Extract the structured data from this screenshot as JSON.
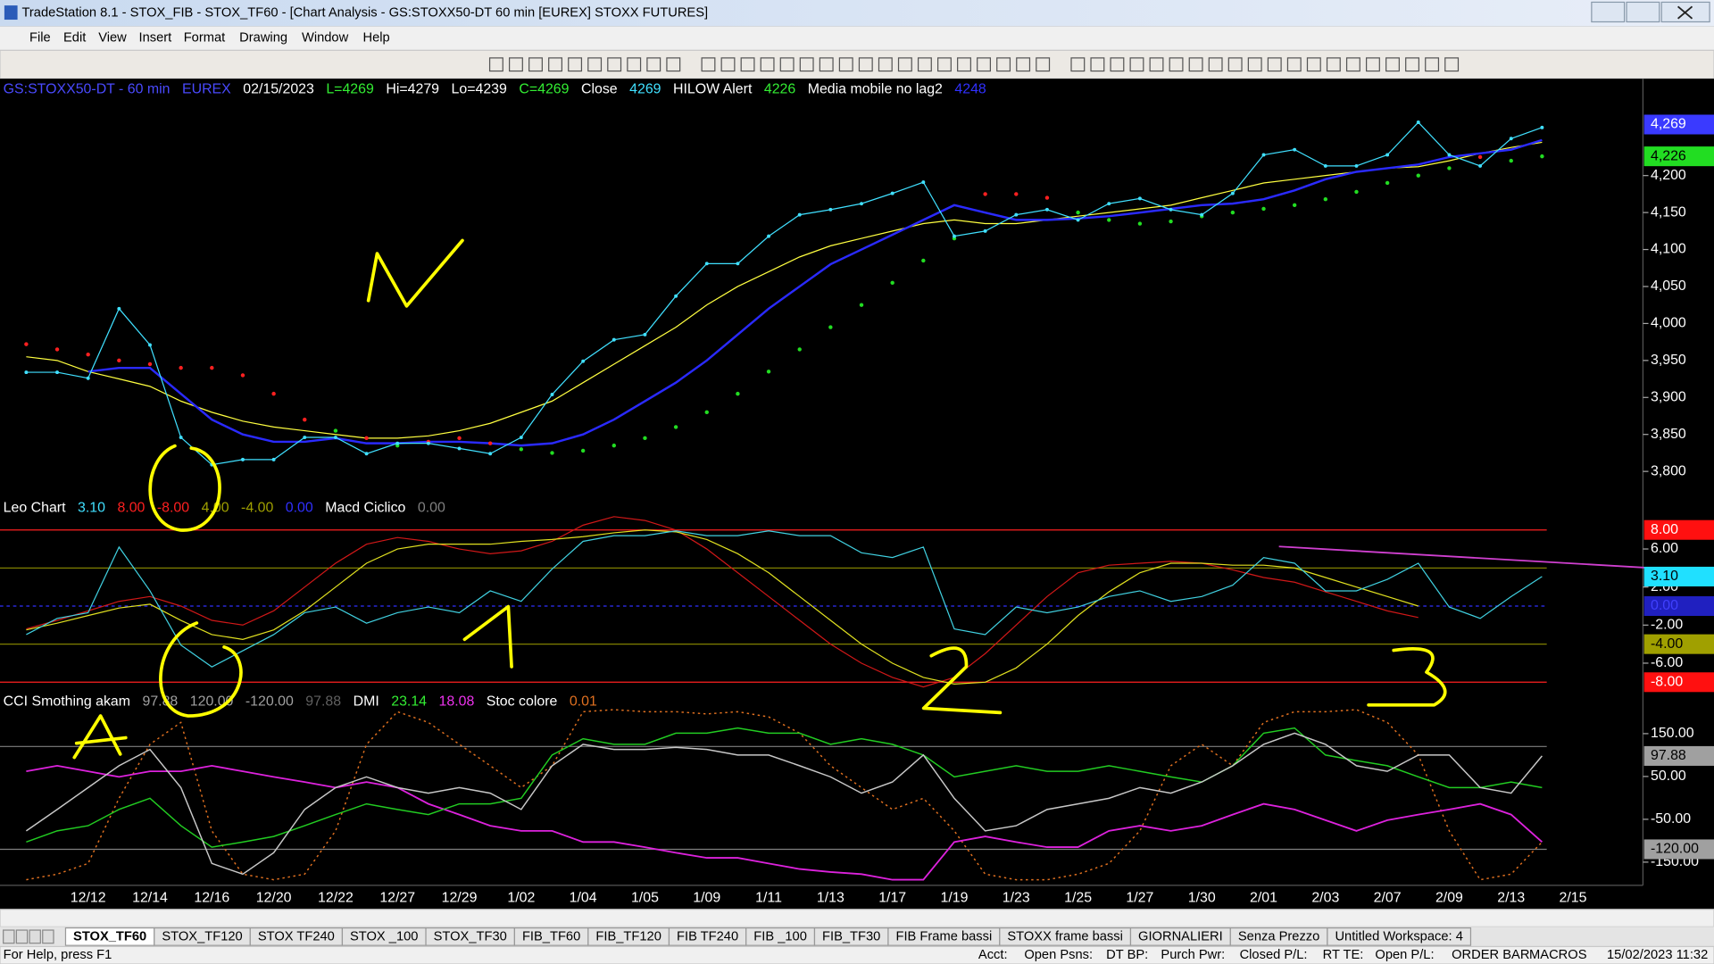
{
  "window": {
    "title": "TradeStation 8.1 - STOX_FIB - STOX_TF60 - [Chart Analysis - GS:STOXX50-DT  60 min  [EUREX] STOXX FUTURES]"
  },
  "menu": [
    "File",
    "Edit",
    "View",
    "Insert",
    "Format",
    "Drawing",
    "Window",
    "Help"
  ],
  "chart_data": [
    {
      "type": "line",
      "header": [
        {
          "text": "GS:STOXX50-DT - 60 min",
          "color": "#4a4aff"
        },
        {
          "text": "EUREX",
          "color": "#4a4aff"
        },
        {
          "text": "02/15/2023",
          "color": "#ffffff"
        },
        {
          "text": "L=4269",
          "color": "#33ee33"
        },
        {
          "text": "Hi=4279",
          "color": "#ffffff"
        },
        {
          "text": "Lo=4239",
          "color": "#ffffff"
        },
        {
          "text": "C=4269",
          "color": "#33ee33"
        },
        {
          "text": "Close",
          "color": "#ffffff"
        },
        {
          "text": "4269",
          "color": "#40e0ff"
        },
        {
          "text": "HILOW Alert",
          "color": "#ffffff"
        },
        {
          "text": "4226",
          "color": "#33ee33"
        },
        {
          "text": "Media mobile no lag2",
          "color": "#ffffff"
        },
        {
          "text": "4248",
          "color": "#3030ff"
        }
      ],
      "categories": [
        null,
        null,
        "12/12",
        null,
        "12/14",
        null,
        "12/16",
        null,
        "12/20",
        null,
        "12/22",
        null,
        "12/27",
        null,
        "12/29",
        null,
        "1/02",
        null,
        "1/04",
        null,
        "1/05",
        null,
        "1/09",
        null,
        "1/11",
        null,
        "1/13",
        null,
        "1/17",
        null,
        "1/19",
        null,
        "1/23",
        null,
        "1/25",
        null,
        "1/27",
        null,
        "1/30",
        null,
        "2/01",
        null,
        "2/03",
        null,
        "2/07",
        null,
        "2/09",
        null,
        "2/13",
        null,
        "2/15"
      ],
      "ylim": [
        3765,
        4328
      ],
      "yticks": [
        {
          "value": 3800,
          "label": "3,800"
        },
        {
          "value": 3850,
          "label": "3,850"
        },
        {
          "value": 3900,
          "label": "3,900"
        },
        {
          "value": 3950,
          "label": "3,950"
        },
        {
          "value": 4000,
          "label": "4,000"
        },
        {
          "value": 4050,
          "label": "4,050"
        },
        {
          "value": 4100,
          "label": "4,100"
        },
        {
          "value": 4150,
          "label": "4,150"
        },
        {
          "value": 4200,
          "label": "4,200"
        }
      ],
      "tags": [
        {
          "value": 4269,
          "label": "4,269",
          "color": "#3a3aff",
          "text_color": "#ffffff"
        },
        {
          "value": 4226,
          "label": "4,226",
          "color": "#22dd22",
          "text_color": "#000000"
        }
      ],
      "series": [
        {
          "color": "#ffff40",
          "width": 1,
          "values": [
            3955,
            3950,
            3935,
            3925,
            3915,
            3895,
            3880,
            3868,
            3860,
            3855,
            3850,
            3845,
            3845,
            3848,
            3855,
            3865,
            3880,
            3895,
            3920,
            3945,
            3970,
            3995,
            4025,
            4050,
            4070,
            4090,
            4105,
            4115,
            4125,
            4135,
            4140,
            4135,
            4135,
            4140,
            4145,
            4150,
            4155,
            4160,
            4170,
            4180,
            4190,
            4195,
            4200,
            4205,
            4210,
            4212,
            4220,
            4230,
            4238,
            4245,
            null
          ]
        },
        {
          "color": "#2a2aff",
          "width": 2,
          "values": [
            null,
            null,
            3935,
            3940,
            3940,
            3905,
            3870,
            3850,
            3840,
            3840,
            3845,
            3838,
            3838,
            3840,
            3840,
            3838,
            3835,
            3838,
            3850,
            3870,
            3895,
            3920,
            3950,
            3985,
            4020,
            4050,
            4080,
            4100,
            4120,
            4140,
            4160,
            4150,
            4140,
            4140,
            4142,
            4145,
            4150,
            4155,
            4160,
            4162,
            4168,
            4180,
            4195,
            4205,
            4210,
            4215,
            4225,
            4230,
            4235,
            4248,
            null
          ]
        },
        {
          "color": "#22dd22",
          "dots_only": true,
          "values": [
            3972,
            3965,
            3958,
            3950,
            3945,
            3940,
            3940,
            3930,
            3905,
            3870,
            3855,
            3845,
            3835,
            3840,
            3845,
            3838,
            3830,
            3825,
            3828,
            3835,
            3845,
            3860,
            3880,
            3905,
            3935,
            3965,
            3995,
            4025,
            4055,
            4085,
            4115,
            4175,
            4175,
            4170,
            4150,
            4140,
            4135,
            4138,
            4145,
            4150,
            4155,
            4160,
            4168,
            4178,
            4190,
            4200,
            4210,
            4225,
            4220,
            4226,
            null
          ],
          "colors": [
            "#ff2020",
            "#ff2020",
            "#ff2020",
            "#ff2020",
            "#ff2020",
            "#ff2020",
            "#ff2020",
            "#ff2020",
            "#ff2020",
            "#ff2020",
            "#22dd22",
            "#ff2020",
            "#22dd22",
            "#ff2020",
            "#ff2020",
            "#ff2020",
            "#22dd22",
            "#22dd22",
            "#22dd22",
            "#22dd22",
            "#22dd22",
            "#22dd22",
            "#22dd22",
            "#22dd22",
            "#22dd22",
            "#22dd22",
            "#22dd22",
            "#22dd22",
            "#22dd22",
            "#22dd22",
            "#22dd22",
            "#ff2020",
            "#ff2020",
            "#ff2020",
            "#22dd22",
            "#22dd22",
            "#22dd22",
            "#22dd22",
            "#22dd22",
            "#22dd22",
            "#22dd22",
            "#22dd22",
            "#22dd22",
            "#22dd22",
            "#22dd22",
            "#22dd22",
            "#22dd22",
            "#ff2020",
            "#22dd22",
            "#22dd22",
            "#22dd22"
          ]
        },
        {
          "color": "#40e0ff",
          "width": 1,
          "markers": true,
          "values": [
            3934,
            3934,
            3926,
            4020,
            3971,
            3846,
            3809,
            3816,
            3816,
            3846,
            3846,
            3824,
            3838,
            3838,
            3831,
            3824,
            3846,
            3904,
            3949,
            3978,
            3985,
            4037,
            4081,
            4081,
            4118,
            4147,
            4154,
            4162,
            4176,
            4191,
            4118,
            4125,
            4147,
            4154,
            4140,
            4162,
            4169,
            4154,
            4147,
            4176,
            4228,
            4235,
            4213,
            4213,
            4228,
            4272,
            4228,
            4213,
            4250,
            4265,
            null
          ]
        }
      ]
    },
    {
      "type": "line",
      "header": [
        {
          "text": "Leo Chart",
          "color": "#ffffff"
        },
        {
          "text": "3.10",
          "color": "#40e0ff"
        },
        {
          "text": "8.00",
          "color": "#ff2020"
        },
        {
          "text": "-8.00",
          "color": "#ff2020"
        },
        {
          "text": "4.00",
          "color": "#a0a000"
        },
        {
          "text": "-4.00",
          "color": "#a0a000"
        },
        {
          "text": "0.00",
          "color": "#3030ff"
        },
        {
          "text": "Macd Ciclico",
          "color": "#ffffff"
        },
        {
          "text": "0.00",
          "color": "#808080"
        }
      ],
      "ylim": [
        -8.9,
        11.2
      ],
      "yticks": [
        {
          "value": 6,
          "label": "6.00"
        },
        {
          "value": 2,
          "label": "2.00"
        },
        {
          "value": -2,
          "label": "-2.00"
        },
        {
          "value": -6,
          "label": "-6.00"
        }
      ],
      "hlines": [
        {
          "value": 8,
          "color": "#ff2020"
        },
        {
          "value": 4,
          "color": "#808000"
        },
        {
          "value": 0,
          "color": "#3030ff"
        },
        {
          "value": -4,
          "color": "#808000"
        },
        {
          "value": -8,
          "color": "#ff2020"
        }
      ],
      "tags": [
        {
          "value": 8,
          "label": "8.00",
          "color": "#ff1010",
          "text_color": "#ffffff"
        },
        {
          "value": 3.1,
          "label": "3.10",
          "color": "#20e0ff",
          "text_color": "#000000"
        },
        {
          "value": 0,
          "label": "0.00",
          "color": "#2020c0",
          "text_color": "#4040ff"
        },
        {
          "value": -4,
          "label": "-4.00",
          "color": "#a0a000",
          "text_color": "#000000"
        },
        {
          "value": -8,
          "label": "-8.00",
          "color": "#ff1010",
          "text_color": "#ffffff"
        }
      ],
      "series": [
        {
          "color": "#d01818",
          "width": 1,
          "values": [
            -2.4,
            -1.5,
            -0.5,
            0.5,
            1.0,
            0.0,
            -1.5,
            -2.0,
            -0.5,
            2.0,
            4.5,
            6.5,
            7.2,
            6.8,
            6.0,
            5.5,
            5.8,
            6.8,
            8.5,
            9.4,
            9.0,
            8.0,
            6.0,
            3.5,
            1.0,
            -1.5,
            -4.0,
            -6.0,
            -7.5,
            -8.5,
            -7.5,
            -5.0,
            -2.0,
            1.0,
            3.5,
            4.3,
            4.5,
            4.7,
            4.5,
            3.8,
            3.0,
            2.5,
            1.5,
            0.5,
            -0.5,
            -1.2,
            null,
            null,
            null,
            null,
            null
          ]
        },
        {
          "color": "#e0e020",
          "width": 1,
          "values": [
            -2.5,
            -1.8,
            -1.0,
            -0.2,
            0.2,
            -1.5,
            -3.0,
            -3.5,
            -2.5,
            -0.5,
            2.0,
            4.5,
            6.0,
            6.5,
            6.5,
            6.5,
            6.8,
            7.0,
            7.3,
            7.7,
            8.0,
            7.8,
            7.0,
            5.5,
            3.5,
            1.0,
            -1.5,
            -4.0,
            -6.0,
            -7.5,
            -8.2,
            -8.0,
            -6.5,
            -4.0,
            -1.0,
            1.5,
            3.5,
            4.5,
            4.5,
            4.3,
            4.3,
            4.0,
            3.0,
            2.0,
            1.0,
            0.0,
            null,
            null,
            null,
            null,
            null
          ]
        },
        {
          "color": "#40d0e0",
          "width": 1,
          "values": [
            -3.0,
            -1.3,
            -0.7,
            6.2,
            1.6,
            -4.1,
            -6.4,
            -4.7,
            -3.0,
            -0.7,
            -0.1,
            -1.8,
            -0.7,
            -0.1,
            -0.7,
            1.6,
            0.5,
            3.9,
            6.8,
            7.4,
            7.4,
            7.9,
            7.4,
            7.4,
            7.9,
            7.4,
            7.4,
            5.6,
            5.1,
            6.2,
            -2.4,
            -3.0,
            -0.1,
            -0.7,
            -0.1,
            1.0,
            1.6,
            0.5,
            1.0,
            2.2,
            5.1,
            4.5,
            1.6,
            1.6,
            2.8,
            4.5,
            -0.1,
            -1.3,
            1.0,
            3.1,
            null
          ]
        }
      ]
    },
    {
      "type": "line",
      "header": [
        {
          "text": "CCI Smothing akam",
          "color": "#ffffff"
        },
        {
          "text": "97.88",
          "color": "#a0a0a0"
        },
        {
          "text": "120.00",
          "color": "#a0a0a0"
        },
        {
          "text": "-120.00",
          "color": "#a0a0a0"
        },
        {
          "text": "97.88",
          "color": "#606060"
        },
        {
          "text": "DMI",
          "color": "#ffffff"
        },
        {
          "text": "23.14",
          "color": "#33ee33"
        },
        {
          "text": "18.08",
          "color": "#ee33ee"
        },
        {
          "text": "Stoc colore",
          "color": "#ffffff"
        },
        {
          "text": "0.01",
          "color": "#e07020"
        }
      ],
      "ylim": [
        -199,
        245
      ],
      "yticks": [
        {
          "value": 150,
          "label": "150.00"
        },
        {
          "value": 50,
          "label": "50.00"
        },
        {
          "value": -50,
          "label": "-50.00"
        },
        {
          "value": -150,
          "label": "-150.00"
        }
      ],
      "hlines": [
        {
          "value": 120,
          "color": "#808080"
        },
        {
          "value": -120,
          "color": "#808080"
        }
      ],
      "tags": [
        {
          "value": 97.88,
          "label": "97.88",
          "color": "#a0a0a0",
          "text_color": "#000000"
        },
        {
          "value": -120,
          "label": "-120.00",
          "color": "#a0a0a0",
          "text_color": "#000000"
        }
      ],
      "series": [
        {
          "color": "#e07020",
          "width": 1.2,
          "dashed": true,
          "values": [
            -191,
            -178,
            -153,
            -1,
            125,
            176,
            -77,
            -178,
            -191,
            -178,
            -77,
            125,
            201,
            176,
            125,
            75,
            24,
            75,
            201,
            206,
            201,
            201,
            196,
            201,
            189,
            151,
            75,
            24,
            -27,
            -1,
            -77,
            -178,
            -191,
            -191,
            -178,
            -153,
            -77,
            75,
            125,
            75,
            176,
            201,
            201,
            206,
            176,
            100,
            -77,
            -191,
            -178,
            -103,
            null
          ]
        },
        {
          "color": "#dd22dd",
          "width": 1.5,
          "values": [
            62,
            75,
            62,
            49,
            62,
            62,
            75,
            62,
            49,
            37,
            24,
            37,
            24,
            -14,
            -39,
            -65,
            -77,
            -77,
            -103,
            -103,
            -115,
            -128,
            -140,
            -140,
            -153,
            -166,
            -173,
            -178,
            -191,
            -191,
            -103,
            -90,
            -103,
            -115,
            -115,
            -77,
            -65,
            -77,
            -65,
            -39,
            -14,
            -27,
            -52,
            -77,
            -52,
            -39,
            -27,
            -14,
            -39,
            -103,
            null
          ]
        },
        {
          "color": "#22cc22",
          "width": 1.2,
          "values": [
            -103,
            -77,
            -65,
            -27,
            -1,
            -65,
            -115,
            -103,
            -90,
            -65,
            -39,
            -14,
            -27,
            -39,
            -14,
            -14,
            -1,
            100,
            138,
            125,
            125,
            151,
            151,
            163,
            151,
            151,
            125,
            138,
            125,
            100,
            49,
            62,
            75,
            62,
            62,
            75,
            62,
            49,
            37,
            75,
            151,
            163,
            100,
            87,
            75,
            49,
            24,
            24,
            37,
            24,
            null
          ]
        },
        {
          "color": "#c8c8c8",
          "width": 1.2,
          "values": [
            -77,
            -27,
            24,
            75,
            113,
            24,
            -153,
            -178,
            -128,
            -27,
            24,
            49,
            24,
            11,
            24,
            11,
            -27,
            75,
            125,
            113,
            113,
            118,
            113,
            100,
            100,
            75,
            49,
            11,
            37,
            100,
            -1,
            -77,
            -65,
            -27,
            -14,
            -1,
            24,
            11,
            37,
            75,
            125,
            151,
            125,
            75,
            62,
            100,
            100,
            24,
            11,
            98,
            null
          ]
        }
      ]
    }
  ],
  "tabs": [
    "STOX_TF60",
    "STOX_TF120",
    "STOX TF240",
    "STOX _100",
    "STOX_TF30",
    "FIB_TF60",
    "FIB_TF120",
    "FIB TF240",
    "FIB _100",
    "FIB_TF30",
    "FIB Frame bassi",
    "STOXX frame bassi",
    "GIORNALIERI",
    "Senza Prezzo",
    "Untitled Workspace:  4"
  ],
  "status": [
    "For Help, press F1",
    "Acct:",
    "Open Psns:",
    "DT BP:",
    "Purch Pwr:",
    "Closed P/L:",
    "RT TE:",
    "Open P/L:",
    "ORDER BAR",
    "MACROS",
    "15/02/2023 11:32"
  ]
}
